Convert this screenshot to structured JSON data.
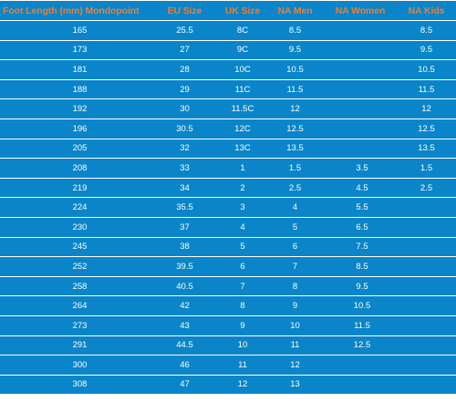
{
  "table": {
    "headers": [
      "Foot Length (mm) Mondopoint",
      "EU Size",
      "UK Size",
      "NA Men",
      "NA Women",
      "NA Kids"
    ],
    "rows": [
      [
        "165",
        "25.5",
        "8C",
        "8.5",
        "",
        "8.5"
      ],
      [
        "173",
        "27",
        "9C",
        "9.5",
        "",
        "9.5"
      ],
      [
        "181",
        "28",
        "10C",
        "10.5",
        "",
        "10.5"
      ],
      [
        "188",
        "29",
        "11C",
        "11.5",
        "",
        "11.5"
      ],
      [
        "192",
        "30",
        "11.5C",
        "12",
        "",
        "12"
      ],
      [
        "196",
        "30.5",
        "12C",
        "12.5",
        "",
        "12.5"
      ],
      [
        "205",
        "32",
        "13C",
        "13.5",
        "",
        "13.5"
      ],
      [
        "208",
        "33",
        "1",
        "1.5",
        "3.5",
        "1.5"
      ],
      [
        "219",
        "34",
        "2",
        "2.5",
        "4.5",
        "2.5"
      ],
      [
        "224",
        "35.5",
        "3",
        "4",
        "5.5",
        ""
      ],
      [
        "230",
        "37",
        "4",
        "5",
        "6.5",
        ""
      ],
      [
        "245",
        "38",
        "5",
        "6",
        "7.5",
        ""
      ],
      [
        "252",
        "39.5",
        "6",
        "7",
        "8.5",
        ""
      ],
      [
        "258",
        "40.5",
        "7",
        "8",
        "9.5",
        ""
      ],
      [
        "264",
        "42",
        "8",
        "9",
        "10.5",
        ""
      ],
      [
        "273",
        "43",
        "9",
        "10",
        "11.5",
        ""
      ],
      [
        "291",
        "44.5",
        "10",
        "11",
        "12.5",
        ""
      ],
      [
        "300",
        "46",
        "11",
        "12",
        "",
        ""
      ],
      [
        "308",
        "47",
        "12",
        "13",
        "",
        ""
      ]
    ]
  },
  "colors": {
    "cell_background": "#0a85c9",
    "header_text": "#ee7d31",
    "cell_text": "#ffffff",
    "gridline": "#ffffff"
  }
}
